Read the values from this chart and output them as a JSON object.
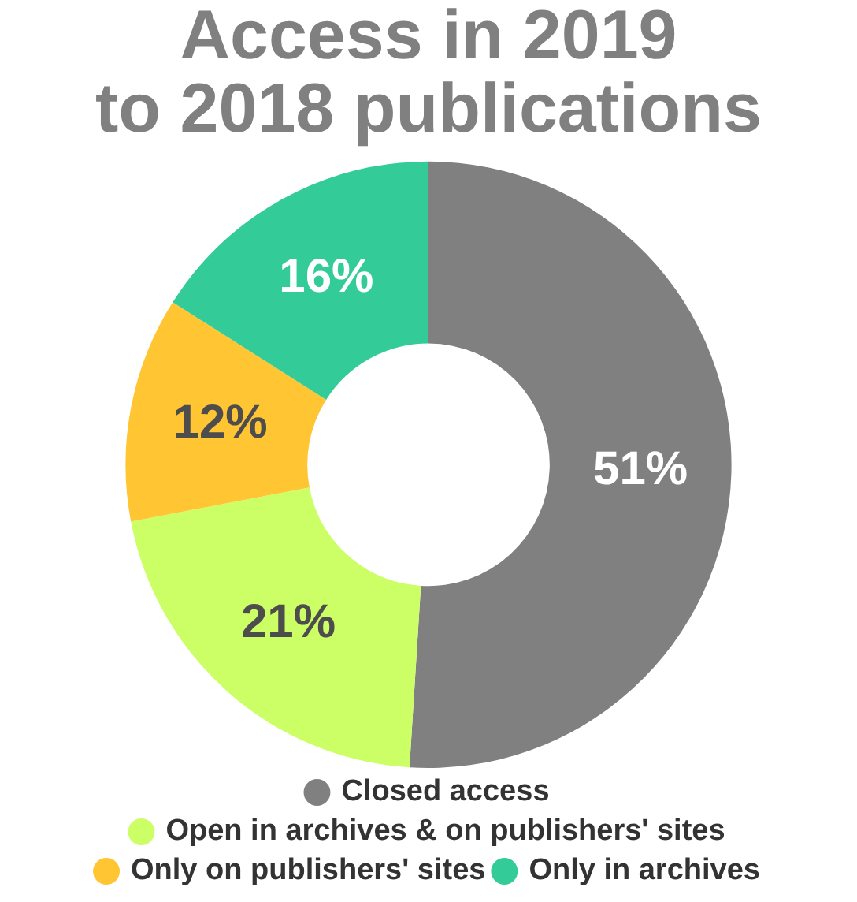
{
  "chart_data": {
    "type": "donut",
    "title": "Access in 2019 to 2018 publications",
    "categories": [
      "Closed access",
      "Open in archives & on publishers' sites",
      "Only on publishers' sites",
      "Only in archives"
    ],
    "values": [
      51,
      21,
      12,
      16
    ],
    "colors": [
      "#808080",
      "#ccff66",
      "#ffc533",
      "#33cc99"
    ],
    "value_labels": [
      "51%",
      "21%",
      "12%",
      "16%"
    ],
    "legend": "bottom",
    "marker": "circle"
  }
}
